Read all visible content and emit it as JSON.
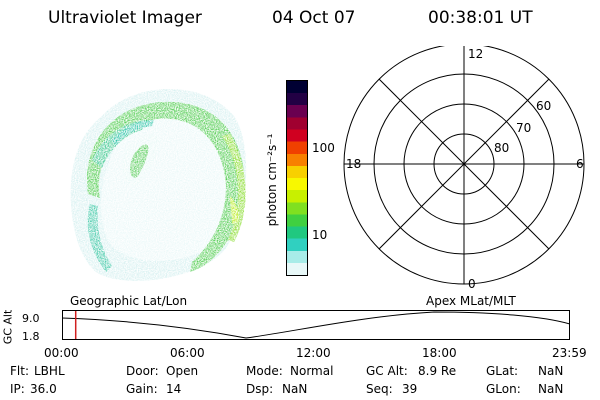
{
  "header": {
    "title": "Ultraviolet Imager",
    "date": "04 Oct 07",
    "time": "00:38:01 UT"
  },
  "colorbar": {
    "unit_label": "photon cm⁻²s⁻¹",
    "tick_labels": [
      "100",
      "10"
    ],
    "colors": [
      "#000033",
      "#220044",
      "#6a0050",
      "#a00030",
      "#d00020",
      "#f04000",
      "#f88000",
      "#f8d000",
      "#f8f800",
      "#c8f000",
      "#80e020",
      "#40d040",
      "#20c880",
      "#30d0c0",
      "#a8ece8",
      "#e8f8f8"
    ]
  },
  "polar_grid": {
    "hour_labels": {
      "top": "12",
      "left": "18",
      "right": "6",
      "bottom": "0"
    },
    "lat_labels": [
      "60",
      "70",
      "80"
    ]
  },
  "timeline": {
    "y_axis_label": "GC Alt",
    "y_ticks": [
      "9.0",
      "1.8"
    ],
    "left_label": "Geographic Lat/Lon",
    "right_label": "Apex  MLat/MLT",
    "time_ticks": [
      "00:00",
      "06:00",
      "12:00",
      "18:00",
      "23:59"
    ],
    "current_fraction": 0.027
  },
  "status": {
    "filter_label": "Flt:",
    "filter_value": "LBHL",
    "ip_label": "IP:",
    "ip_value": "36.0",
    "door_label": "Door:",
    "door_value": "Open",
    "gain_label": "Gain:",
    "gain_value": "14",
    "mode_label": "Mode:",
    "mode_value": "Normal",
    "dsp_label": "Dsp:",
    "dsp_value": "NaN",
    "gcalt_label": "GC Alt:",
    "gcalt_value": "8.9 Re",
    "seq_label": "Seq:",
    "seq_value": "39",
    "glat_label": "GLat:",
    "glat_value": "NaN",
    "glon_label": "GLon:",
    "glon_value": "NaN"
  }
}
